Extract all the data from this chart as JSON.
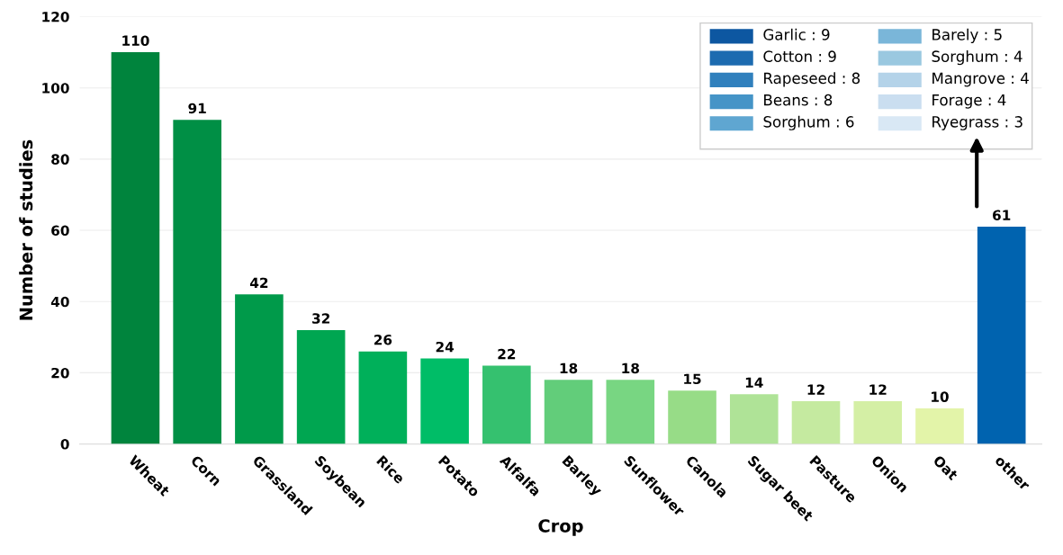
{
  "chart_data": {
    "type": "bar",
    "xlabel": "Crop",
    "ylabel": "Number of studies",
    "categories": [
      "Wheat",
      "Corn",
      "Grassland",
      "Soybean",
      "Rice",
      "Potato",
      "Alfalfa",
      "Barley",
      "Sunflower",
      "Canola",
      "Sugar beet",
      "Pasture",
      "Onion",
      "Oat",
      "other"
    ],
    "values": [
      110,
      91,
      42,
      32,
      26,
      24,
      22,
      18,
      18,
      15,
      14,
      12,
      12,
      10,
      61
    ],
    "colors": [
      "#00843d",
      "#008f45",
      "#009a4a",
      "#00a651",
      "#00b05a",
      "#00bd67",
      "#35c16f",
      "#62cd7a",
      "#78d682",
      "#97dc87",
      "#afe397",
      "#c5eaa0",
      "#d4efa5",
      "#e3f4a9",
      "#0063af"
    ],
    "ylim": [
      0,
      120
    ],
    "yticks": [
      0,
      20,
      40,
      60,
      80,
      100,
      120
    ],
    "grid": "y",
    "data_labels": true,
    "annotations": [
      "Garlic : 9",
      "Cotton : 9",
      "Rapeseed : 8",
      "Beans : 8",
      "Sorghum : 6",
      "Barely : 5",
      "Sorghum : 4",
      "Mangrove : 4",
      "Forage : 4",
      "Ryegrass : 3"
    ]
  }
}
